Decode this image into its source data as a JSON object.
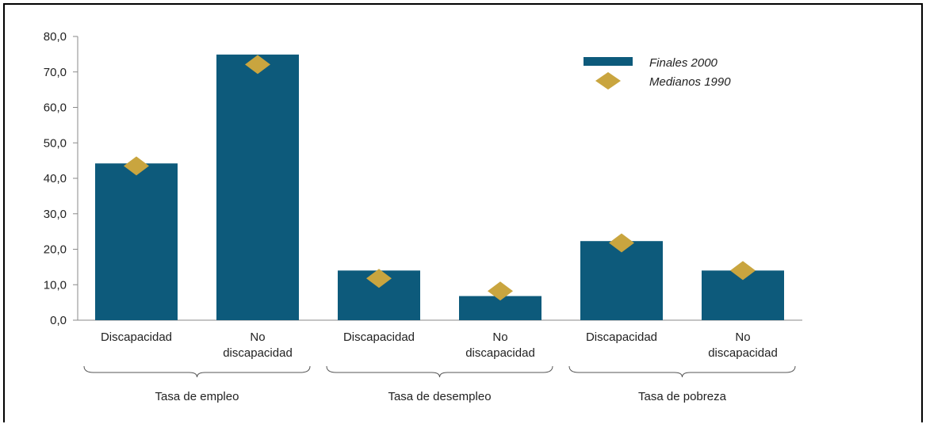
{
  "chart_data": {
    "type": "bar",
    "categories": [
      [
        "Discapacidad"
      ],
      [
        "No",
        "discapacidad"
      ],
      [
        "Discapacidad"
      ],
      [
        "No",
        "discapacidad"
      ],
      [
        "Discapacidad"
      ],
      [
        "No",
        "discapacidad"
      ]
    ],
    "groups": [
      "Tasa de empleo",
      "Tasa de desempleo",
      "Tasa de pobreza"
    ],
    "series": [
      {
        "name": "Finales 2000",
        "kind": "bar",
        "color": "#0d5a7b",
        "values": [
          44.2,
          74.9,
          14.0,
          6.8,
          22.3,
          14.0
        ]
      },
      {
        "name": "Medianos 1990",
        "kind": "marker",
        "marker": "diamond",
        "color": "#c9a53f",
        "values": [
          43.5,
          72.1,
          11.8,
          8.2,
          21.8,
          14.0
        ]
      }
    ],
    "yticks": [
      "0,0",
      "10,0",
      "20,0",
      "30,0",
      "40,0",
      "50,0",
      "60,0",
      "70,0",
      "80,0"
    ],
    "ylim": [
      0,
      80
    ],
    "grid": false,
    "legend_position": "top-right"
  }
}
